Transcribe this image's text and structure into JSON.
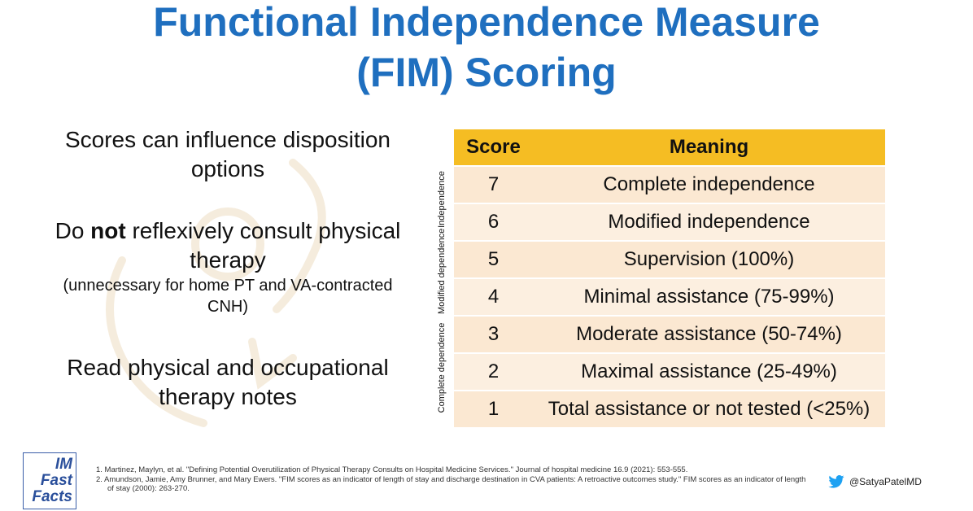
{
  "title_line1": "Functional Independence Measure",
  "title_line2": "(FIM) Scoring",
  "left": {
    "p1": "Scores can influence disposition options",
    "p2_pre": "Do ",
    "p2_bold": "not",
    "p2_post": " reflexively consult physical therapy",
    "p2_small": "(unnecessary for home PT and VA-contracted CNH)",
    "p3": "Read physical and occupational therapy notes"
  },
  "table": {
    "headers": [
      "Score",
      "Meaning"
    ],
    "rows": [
      {
        "score": "7",
        "meaning": "Complete independence"
      },
      {
        "score": "6",
        "meaning": "Modified independence"
      },
      {
        "score": "5",
        "meaning": "Supervision (100%)"
      },
      {
        "score": "4",
        "meaning": "Minimal assistance (75-99%)"
      },
      {
        "score": "3",
        "meaning": "Moderate assistance (50-74%)"
      },
      {
        "score": "2",
        "meaning": "Maximal assistance (25-49%)"
      },
      {
        "score": "1",
        "meaning": "Total assistance or not tested (<25%)"
      }
    ],
    "group_labels": [
      "Independence",
      "Modified dependence",
      "Complete dependence"
    ]
  },
  "logo": {
    "line1": "IM",
    "line2": "Fast",
    "line3": "Facts"
  },
  "references": [
    "1.  Martinez, Maylyn, et al. \"Defining Potential Overutilization of Physical Therapy Consults on Hospital Medicine Services.\" Journal of hospital medicine 16.9 (2021): 553-555.",
    "2.  Amundson, Jamie, Amy Brunner, and Mary Ewers. \"FIM scores as an indicator of length of stay and discharge destination in CVA patients: A retroactive outcomes study.\" FIM scores as an indicator of length of stay (2000): 263-270."
  ],
  "twitter_handle": "@SatyaPatelMD",
  "colors": {
    "title": "#1f6fbf",
    "header": "#f5bd23",
    "row": "#fbe8d2",
    "twitter": "#1da1f2"
  }
}
